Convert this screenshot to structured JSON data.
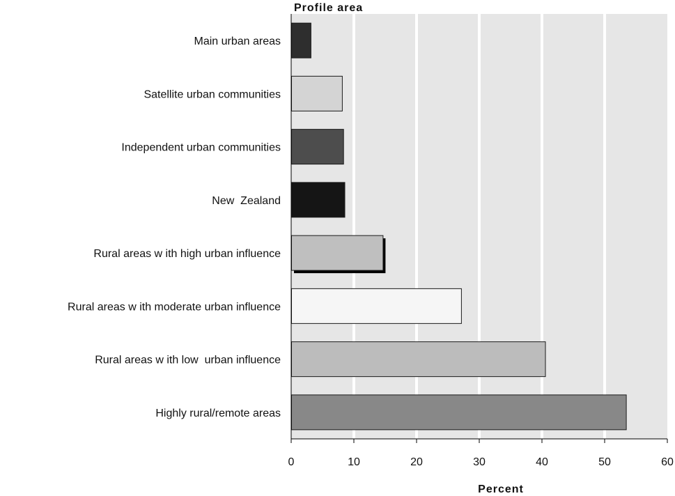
{
  "chart_data": {
    "type": "bar",
    "orientation": "horizontal",
    "ylabel": "Profile area",
    "xlabel": "Percent",
    "xlim": [
      0,
      60
    ],
    "xticks": [
      0,
      10,
      20,
      30,
      40,
      50,
      60
    ],
    "grid": true,
    "categories": [
      "Main urban areas",
      "Satellite urban communities",
      "Independent urban communities",
      "New  Zealand",
      "Rural areas w ith high urban influence",
      "Rural areas w ith moderate urban influence",
      "Rural areas w ith low  urban influence",
      "Highly rural/remote areas"
    ],
    "values": [
      3.1,
      8.1,
      8.3,
      8.5,
      14.6,
      27.1,
      40.5,
      53.4
    ],
    "colors": [
      "#2e2e2e",
      "#d4d4d4",
      "#4d4d4d",
      "#151515",
      "#bfbfbf",
      "#f6f6f6",
      "#bcbcbc",
      "#888888"
    ],
    "highlight_index": 4
  }
}
